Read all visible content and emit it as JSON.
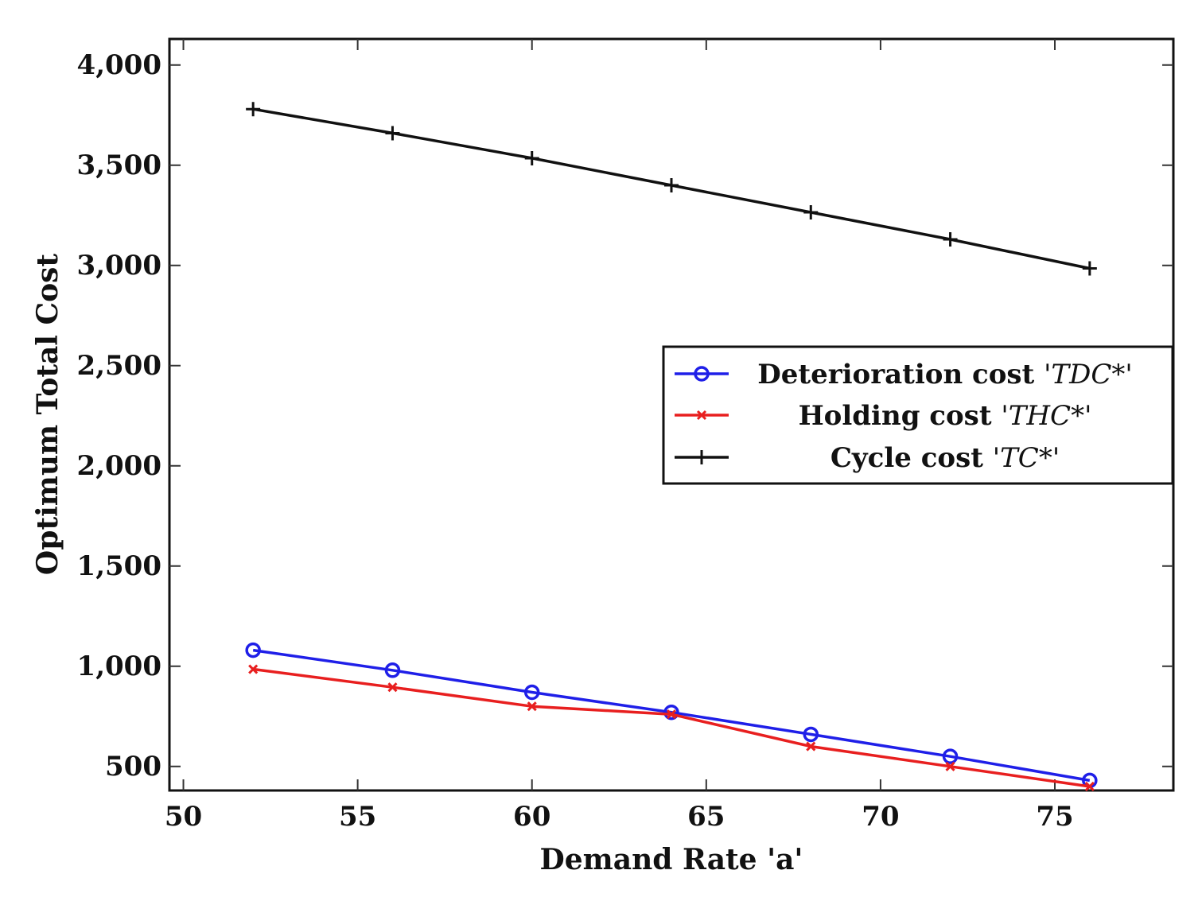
{
  "chart_data": {
    "type": "line",
    "title": "",
    "xlabel": "Demand Rate 'a'",
    "ylabel": "Optimum Total Cost",
    "xlim": [
      49.6,
      78.4
    ],
    "ylim": [
      380,
      4130
    ],
    "x_ticks": [
      50,
      55,
      60,
      65,
      70,
      75
    ],
    "x_tick_labels": [
      "50",
      "55",
      "60",
      "65",
      "70",
      "75"
    ],
    "y_ticks": [
      500,
      1000,
      1500,
      2000,
      2500,
      3000,
      3500,
      4000
    ],
    "y_tick_labels": [
      "500",
      "1,000",
      "1,500",
      "2,000",
      "2,500",
      "3,000",
      "3,500",
      "4,000"
    ],
    "x": [
      52,
      56,
      60,
      64,
      68,
      72,
      76
    ],
    "series": [
      {
        "name": "Deterioration cost 'TDC*'",
        "label_text": "Deterioration cost ",
        "label_symbol": "'TDC*'",
        "color": "#1f1fe8",
        "marker": "circle",
        "values": [
          1080,
          980,
          870,
          770,
          660,
          550,
          430
        ]
      },
      {
        "name": "Holding cost 'THC*'",
        "label_text": "Holding cost ",
        "label_symbol": "'THC*'",
        "color": "#e81f1f",
        "marker": "x",
        "values": [
          985,
          895,
          800,
          760,
          600,
          500,
          400
        ]
      },
      {
        "name": "Cycle cost 'TC*'",
        "label_text": "Cycle cost ",
        "label_symbol": "'TC*'",
        "color": "#111111",
        "marker": "plus",
        "values": [
          3780,
          3660,
          3535,
          3400,
          3265,
          3130,
          2985
        ]
      }
    ],
    "legend": "center-right",
    "grid": false
  }
}
